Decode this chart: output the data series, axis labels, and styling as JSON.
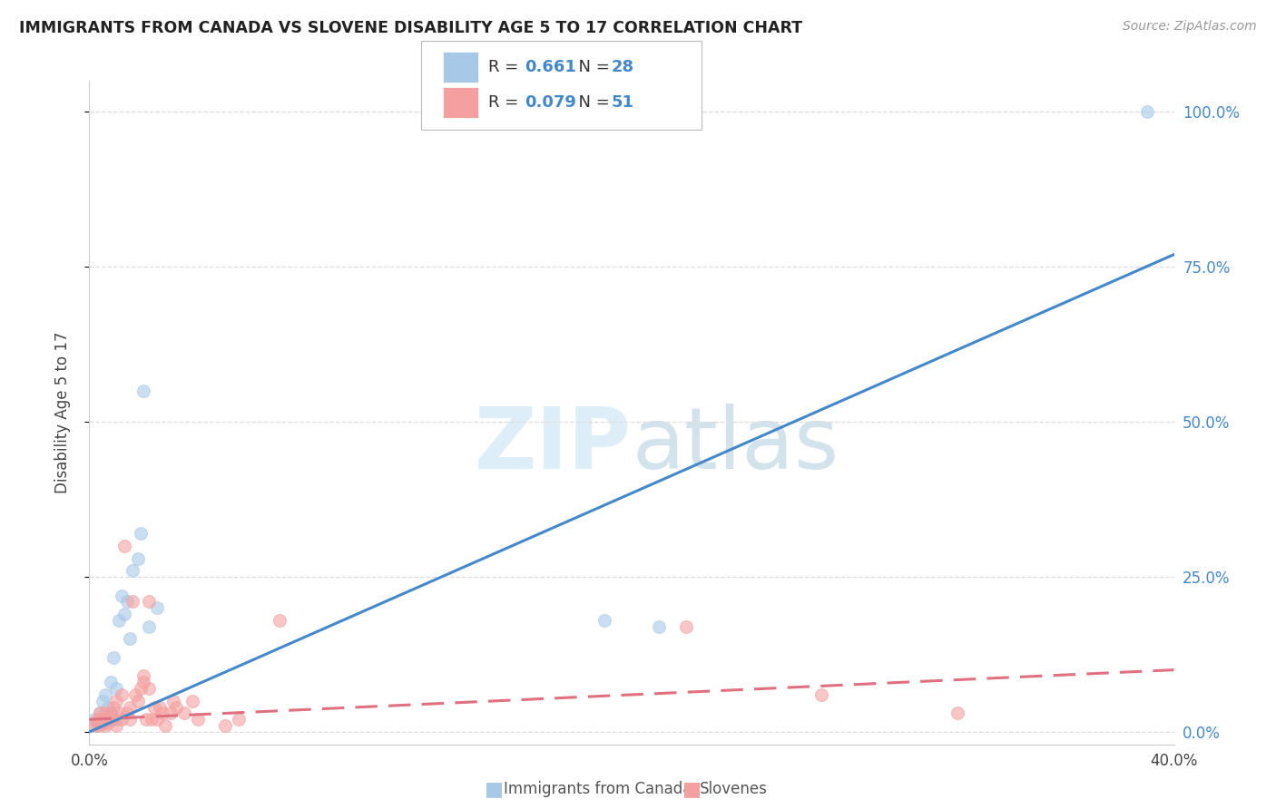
{
  "title": "IMMIGRANTS FROM CANADA VS SLOVENE DISABILITY AGE 5 TO 17 CORRELATION CHART",
  "source": "Source: ZipAtlas.com",
  "xlabel_ticks": [
    "0.0%",
    "",
    "",
    "",
    "40.0%"
  ],
  "xlabel_tick_vals": [
    0.0,
    0.1,
    0.2,
    0.3,
    0.4
  ],
  "ylabel": "Disability Age 5 to 17",
  "ylabel_tick_vals": [
    0.0,
    0.25,
    0.5,
    0.75,
    1.0
  ],
  "right_tick_labels": [
    "0.0%",
    "25.0%",
    "50.0%",
    "75.0%",
    "100.0%"
  ],
  "xlim": [
    0.0,
    0.4
  ],
  "ylim": [
    -0.02,
    1.05
  ],
  "canada_R": 0.661,
  "canada_N": 28,
  "slovene_R": 0.079,
  "slovene_N": 51,
  "canada_color": "#a8c8e8",
  "slovene_color": "#f4a0a0",
  "canada_line_color": "#4488cc",
  "slovene_line_color": "#e07080",
  "watermark_color": "#ddeef8",
  "grid_color": "#dddddd",
  "canada_scatter_x": [
    0.002,
    0.003,
    0.004,
    0.005,
    0.005,
    0.006,
    0.006,
    0.007,
    0.007,
    0.008,
    0.008,
    0.009,
    0.01,
    0.01,
    0.011,
    0.012,
    0.013,
    0.014,
    0.015,
    0.016,
    0.018,
    0.019,
    0.02,
    0.022,
    0.025,
    0.19,
    0.21,
    0.39
  ],
  "canada_scatter_y": [
    0.02,
    0.01,
    0.03,
    0.015,
    0.05,
    0.02,
    0.06,
    0.04,
    0.02,
    0.08,
    0.03,
    0.12,
    0.07,
    0.02,
    0.18,
    0.22,
    0.19,
    0.21,
    0.15,
    0.26,
    0.28,
    0.32,
    0.55,
    0.17,
    0.2,
    0.18,
    0.17,
    1.0
  ],
  "slovene_scatter_x": [
    0.002,
    0.003,
    0.003,
    0.004,
    0.004,
    0.005,
    0.005,
    0.006,
    0.006,
    0.007,
    0.007,
    0.008,
    0.008,
    0.009,
    0.009,
    0.01,
    0.01,
    0.011,
    0.012,
    0.012,
    0.013,
    0.014,
    0.015,
    0.015,
    0.016,
    0.017,
    0.018,
    0.019,
    0.02,
    0.02,
    0.021,
    0.022,
    0.022,
    0.023,
    0.024,
    0.025,
    0.026,
    0.027,
    0.028,
    0.03,
    0.031,
    0.032,
    0.035,
    0.038,
    0.04,
    0.05,
    0.055,
    0.07,
    0.22,
    0.27,
    0.32
  ],
  "slovene_scatter_y": [
    0.01,
    0.015,
    0.02,
    0.01,
    0.03,
    0.015,
    0.02,
    0.01,
    0.03,
    0.015,
    0.02,
    0.025,
    0.03,
    0.02,
    0.04,
    0.01,
    0.05,
    0.03,
    0.02,
    0.06,
    0.3,
    0.03,
    0.02,
    0.04,
    0.21,
    0.06,
    0.05,
    0.07,
    0.08,
    0.09,
    0.02,
    0.21,
    0.07,
    0.02,
    0.04,
    0.02,
    0.04,
    0.03,
    0.01,
    0.03,
    0.05,
    0.04,
    0.03,
    0.05,
    0.02,
    0.01,
    0.02,
    0.18,
    0.17,
    0.06,
    0.03
  ],
  "canada_line_x": [
    0.0,
    0.4
  ],
  "canada_line_y": [
    0.0,
    0.77
  ],
  "slovene_line_x": [
    0.0,
    0.4
  ],
  "slovene_line_y": [
    0.02,
    0.1
  ]
}
